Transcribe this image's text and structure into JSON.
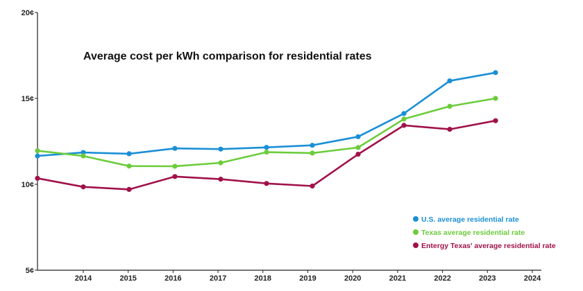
{
  "chart_data": {
    "type": "line",
    "title": "Average cost per kWh comparison for residential rates",
    "xlabel": "",
    "ylabel": "",
    "x_tick_labels": [
      "2014",
      "2015",
      "2016",
      "2017",
      "2018",
      "2019",
      "2020",
      "2021",
      "2022",
      "2023",
      "2024"
    ],
    "y_tick_labels": [
      "5¢",
      "10¢",
      "15¢",
      "20¢"
    ],
    "y_ticks": [
      5,
      10,
      15,
      20
    ],
    "ylim": [
      5,
      20
    ],
    "xlim": [
      2013,
      2024
    ],
    "grid": false,
    "legend_position": "bottom-right",
    "series": [
      {
        "name": "U.S. average residential rate",
        "color": "#1a8fd6",
        "points": [
          {
            "x": 2013.0,
            "y": 11.65
          },
          {
            "x": 2014.0,
            "y": 11.85
          },
          {
            "x": 2015.0,
            "y": 11.78
          },
          {
            "x": 2016.0,
            "y": 12.09
          },
          {
            "x": 2017.0,
            "y": 12.05
          },
          {
            "x": 2018.0,
            "y": 12.15
          },
          {
            "x": 2019.0,
            "y": 12.27
          },
          {
            "x": 2020.0,
            "y": 12.77
          },
          {
            "x": 2021.0,
            "y": 14.12
          },
          {
            "x": 2022.0,
            "y": 16.02
          },
          {
            "x": 2023.0,
            "y": 16.5
          }
        ]
      },
      {
        "name": "Texas average residential rate",
        "color": "#6ccc3c",
        "points": [
          {
            "x": 2013.0,
            "y": 11.95
          },
          {
            "x": 2014.0,
            "y": 11.65
          },
          {
            "x": 2015.0,
            "y": 11.06
          },
          {
            "x": 2016.0,
            "y": 11.05
          },
          {
            "x": 2017.0,
            "y": 11.25
          },
          {
            "x": 2018.0,
            "y": 11.87
          },
          {
            "x": 2019.0,
            "y": 11.82
          },
          {
            "x": 2020.0,
            "y": 12.14
          },
          {
            "x": 2021.0,
            "y": 13.8
          },
          {
            "x": 2022.0,
            "y": 14.54
          },
          {
            "x": 2023.0,
            "y": 15.0
          }
        ]
      },
      {
        "name": "Entergy Texas' average residential rate",
        "color": "#a0114a",
        "points": [
          {
            "x": 2013.0,
            "y": 10.35
          },
          {
            "x": 2014.0,
            "y": 9.85
          },
          {
            "x": 2015.0,
            "y": 9.7
          },
          {
            "x": 2016.0,
            "y": 10.45
          },
          {
            "x": 2017.0,
            "y": 10.3
          },
          {
            "x": 2018.0,
            "y": 10.05
          },
          {
            "x": 2019.0,
            "y": 9.9
          },
          {
            "x": 2020.0,
            "y": 11.75
          },
          {
            "x": 2021.0,
            "y": 13.43
          },
          {
            "x": 2022.0,
            "y": 13.2
          },
          {
            "x": 2023.0,
            "y": 13.7
          }
        ]
      }
    ]
  }
}
